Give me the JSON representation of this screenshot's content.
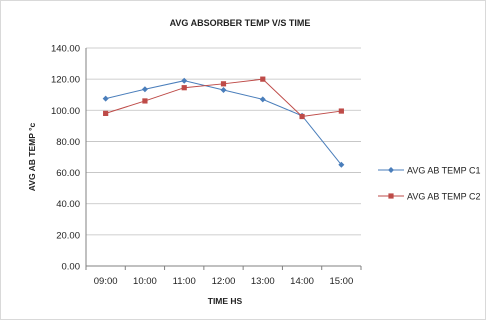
{
  "chart_data": {
    "type": "line",
    "title": "AVG ABSORBER TEMP V/S TIME",
    "xlabel": "TIME HS",
    "ylabel": "AVG AB TEMP °c",
    "categories": [
      "09:00",
      "10:00",
      "11:00",
      "12:00",
      "13:00",
      "14:00",
      "15:00"
    ],
    "ylim": [
      0,
      140
    ],
    "yticks": [
      "0.00",
      "20.00",
      "40.00",
      "60.00",
      "80.00",
      "100.00",
      "120.00",
      "140.00"
    ],
    "grid": true,
    "legend_position": "right",
    "series": [
      {
        "name": "AVG AB TEMP C1",
        "color": "#4a7ebb",
        "marker": "diamond",
        "values": [
          107.5,
          113.5,
          119,
          113,
          107,
          96.5,
          65
        ]
      },
      {
        "name": "AVG AB TEMP  C2",
        "color": "#be4b48",
        "marker": "square",
        "values": [
          98,
          106,
          114.5,
          117,
          120,
          96,
          99.5
        ]
      }
    ]
  }
}
